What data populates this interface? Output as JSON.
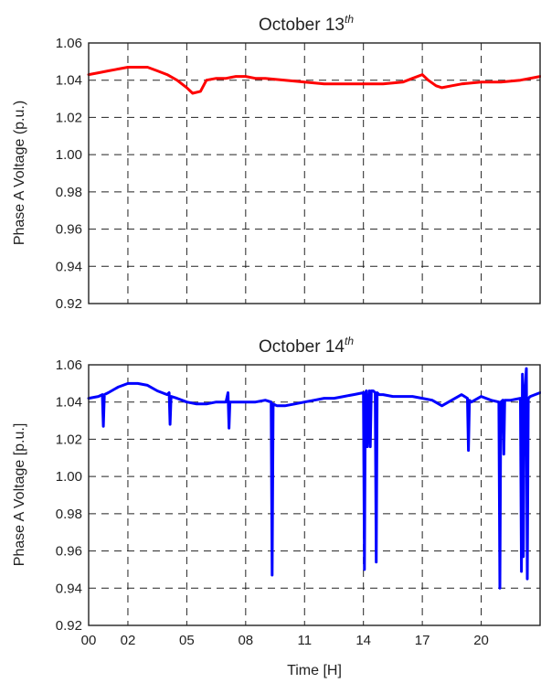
{
  "chart_data": [
    {
      "type": "line",
      "title": "October 13",
      "title_superscript": "th",
      "ylabel": "Phase A Voltage (p.u.)",
      "xlabel": "",
      "xlim": [
        0,
        23
      ],
      "ylim": [
        0.92,
        1.06
      ],
      "grid": true,
      "x_ticks": [
        0,
        2,
        5,
        8,
        11,
        14,
        17,
        20
      ],
      "x_tick_labels": [
        "00",
        "02",
        "05",
        "08",
        "11",
        "14",
        "17",
        "20"
      ],
      "y_ticks": [
        0.92,
        0.94,
        0.96,
        0.98,
        1.0,
        1.02,
        1.04,
        1.06
      ],
      "y_tick_labels": [
        "0.92",
        "0.94",
        "0.96",
        "0.98",
        "1.00",
        "1.02",
        "1.04",
        "1.06"
      ],
      "series": [
        {
          "color": "#ff0000",
          "x": [
            0,
            0.5,
            1,
            1.5,
            2,
            2.5,
            3,
            3.5,
            4,
            4.5,
            5,
            5.3,
            5.7,
            6,
            6.5,
            7,
            7.5,
            8,
            8.5,
            9,
            10,
            11,
            12,
            13,
            14,
            15,
            16,
            16.5,
            17,
            17.3,
            17.7,
            18,
            18.5,
            19,
            20,
            21,
            22,
            23
          ],
          "y": [
            1.043,
            1.044,
            1.045,
            1.046,
            1.047,
            1.047,
            1.047,
            1.045,
            1.043,
            1.04,
            1.036,
            1.033,
            1.034,
            1.04,
            1.041,
            1.041,
            1.042,
            1.042,
            1.041,
            1.041,
            1.04,
            1.039,
            1.038,
            1.038,
            1.038,
            1.038,
            1.039,
            1.041,
            1.043,
            1.04,
            1.037,
            1.036,
            1.037,
            1.038,
            1.039,
            1.039,
            1.04,
            1.042
          ]
        }
      ]
    },
    {
      "type": "line",
      "title": "October 14",
      "title_superscript": "th",
      "ylabel": "Phase A Voltage [p.u.]",
      "xlabel": "Time [H]",
      "xlim": [
        0,
        23
      ],
      "ylim": [
        0.92,
        1.06
      ],
      "grid": true,
      "x_ticks": [
        0,
        2,
        5,
        8,
        11,
        14,
        17,
        20
      ],
      "x_tick_labels": [
        "00",
        "02",
        "05",
        "08",
        "11",
        "14",
        "17",
        "20"
      ],
      "y_ticks": [
        0.92,
        0.94,
        0.96,
        0.98,
        1.0,
        1.02,
        1.04,
        1.06
      ],
      "y_tick_labels": [
        "0.92",
        "0.94",
        "0.96",
        "0.98",
        "1.00",
        "1.02",
        "1.04",
        "1.06"
      ],
      "series": [
        {
          "color": "#0000ff",
          "x": [
            0,
            0.5,
            0.7,
            0.75,
            0.8,
            1,
            1.5,
            2,
            2.5,
            3,
            3.5,
            4,
            4.1,
            4.15,
            4.2,
            4.5,
            5,
            5.5,
            6,
            6.5,
            7,
            7.1,
            7.15,
            7.2,
            7.5,
            8,
            8.5,
            9,
            9.3,
            9.35,
            9.4,
            9.6,
            10,
            10.5,
            11,
            11.5,
            12,
            12.5,
            13,
            13.5,
            14,
            14.05,
            14.1,
            14.15,
            14.2,
            14.3,
            14.35,
            14.4,
            14.5,
            14.6,
            14.65,
            14.7,
            14.8,
            15,
            15.5,
            16,
            16.5,
            17,
            17.5,
            18,
            18.5,
            19,
            19.3,
            19.35,
            19.4,
            19.5,
            20,
            20.5,
            20.9,
            20.95,
            21,
            21.1,
            21.15,
            21.2,
            21.5,
            22,
            22.05,
            22.1,
            22.15,
            22.2,
            22.3,
            22.35,
            22.4,
            22.5,
            23
          ],
          "y": [
            1.042,
            1.043,
            1.044,
            1.027,
            1.044,
            1.045,
            1.048,
            1.05,
            1.05,
            1.049,
            1.046,
            1.044,
            1.045,
            1.028,
            1.043,
            1.042,
            1.04,
            1.039,
            1.039,
            1.04,
            1.04,
            1.045,
            1.026,
            1.04,
            1.04,
            1.04,
            1.04,
            1.041,
            1.04,
            0.947,
            1.039,
            1.038,
            1.038,
            1.039,
            1.04,
            1.041,
            1.042,
            1.042,
            1.043,
            1.044,
            1.045,
            0.95,
            1.045,
            1.046,
            1.016,
            1.046,
            1.016,
            1.046,
            1.046,
            1.045,
            0.954,
            1.045,
            1.044,
            1.044,
            1.043,
            1.043,
            1.043,
            1.042,
            1.041,
            1.038,
            1.041,
            1.044,
            1.042,
            1.014,
            1.041,
            1.04,
            1.043,
            1.041,
            1.04,
            0.94,
            1.04,
            1.041,
            1.012,
            1.041,
            1.041,
            1.042,
            0.949,
            1.055,
            0.957,
            1.042,
            1.058,
            0.945,
            1.042,
            1.043,
            1.045
          ]
        }
      ]
    }
  ]
}
